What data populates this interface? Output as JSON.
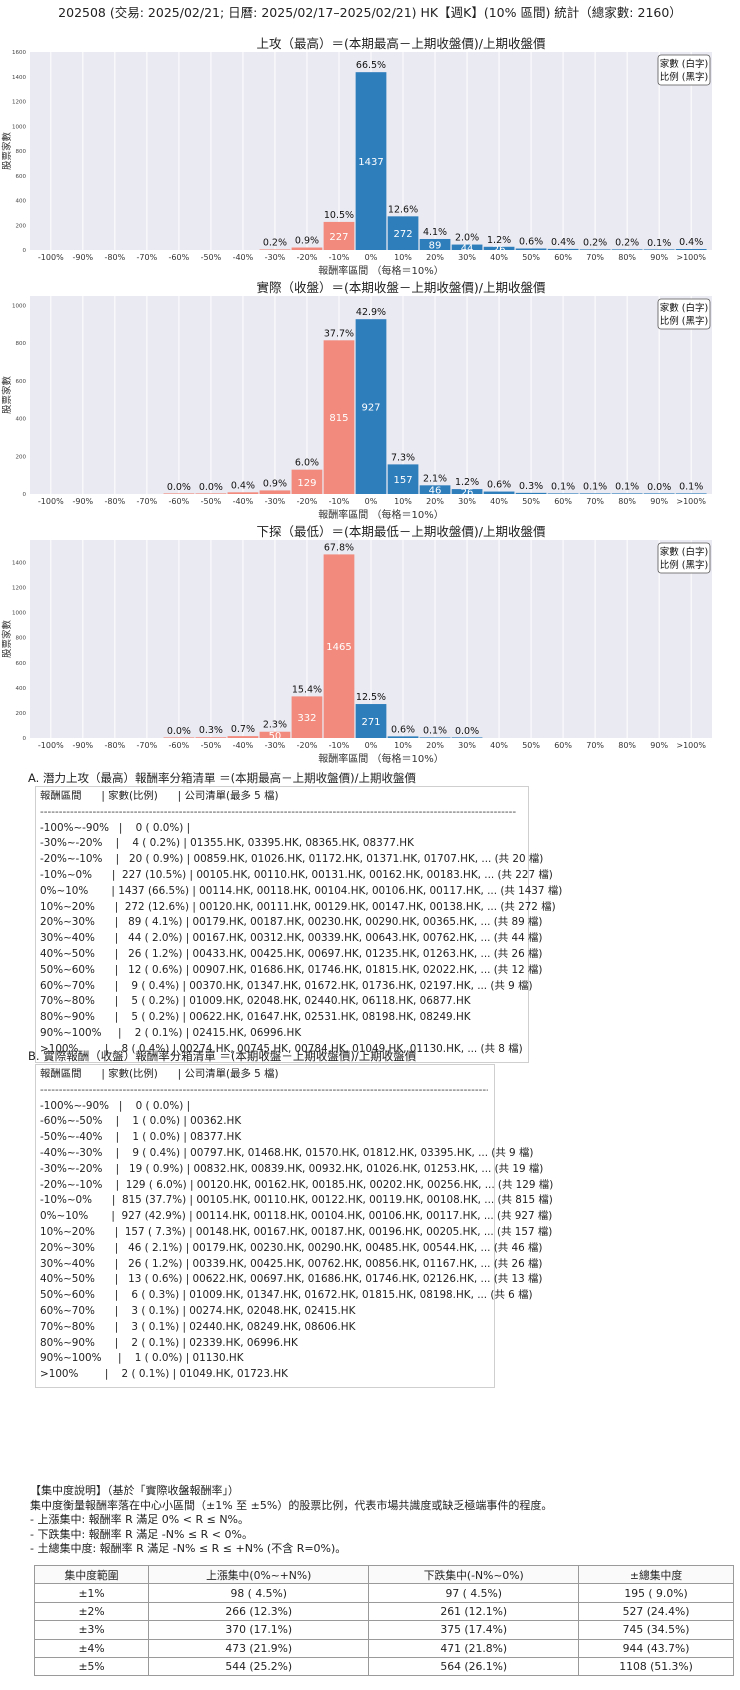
{
  "page_title": "202508 (交易: 2025/02/21; 日曆: 2025/02/17–2025/02/21) HK【週K】(10% 區間) 統計（總家數: 2160）",
  "legend_lines": [
    "家數 (白字)",
    "比例 (黑字)"
  ],
  "chart_data": [
    {
      "type": "bar",
      "title": "上攻（最高）＝(本期最高－上期收盤價)/上期收盤價",
      "xlabel": "報酬率區間 （每格＝10%）",
      "ylabel": "股票家數",
      "categories": [
        "-100%",
        "-90%",
        "-80%",
        "-70%",
        "-60%",
        "-50%",
        "-40%",
        "-30%",
        "-20%",
        "-10%",
        "0%",
        "10%",
        "20%",
        "30%",
        "40%",
        "50%",
        "60%",
        "70%",
        "80%",
        "90%",
        ">100%"
      ],
      "values": [
        0,
        0,
        0,
        0,
        0,
        0,
        0,
        4,
        20,
        227,
        1437,
        272,
        89,
        44,
        26,
        12,
        9,
        5,
        5,
        2,
        8
      ],
      "pct_labels": [
        "",
        "",
        "",
        "",
        "",
        "",
        "",
        "0.2%",
        "0.9%",
        "10.5%",
        "66.5%",
        "12.6%",
        "4.1%",
        "2.0%",
        "1.2%",
        "0.6%",
        "0.4%",
        "0.2%",
        "0.2%",
        "0.1%",
        "0.4%"
      ],
      "count_labels": [
        "",
        "",
        "",
        "",
        "",
        "",
        "",
        "",
        "",
        "227",
        "1437",
        "272",
        "89",
        "44",
        "26",
        "",
        "",
        "",
        "",
        "",
        ""
      ],
      "yticks": [
        "0",
        "200",
        "400",
        "600",
        "800",
        "1000",
        "1200",
        "1400",
        "1600"
      ],
      "ylim": [
        0,
        1600
      ]
    },
    {
      "type": "bar",
      "title": "實際（收盤）＝(本期收盤－上期收盤價)/上期收盤價",
      "xlabel": "報酬率區間 （每格＝10%）",
      "ylabel": "股票家數",
      "categories": [
        "-100%",
        "-90%",
        "-80%",
        "-70%",
        "-60%",
        "-50%",
        "-40%",
        "-30%",
        "-20%",
        "-10%",
        "0%",
        "10%",
        "20%",
        "30%",
        "40%",
        "50%",
        "60%",
        "70%",
        "80%",
        "90%",
        ">100%"
      ],
      "values": [
        0,
        0,
        0,
        0,
        1,
        1,
        9,
        19,
        129,
        815,
        927,
        157,
        46,
        26,
        13,
        6,
        3,
        3,
        2,
        1,
        2
      ],
      "pct_labels": [
        "",
        "",
        "",
        "",
        "0.0%",
        "0.0%",
        "0.4%",
        "0.9%",
        "6.0%",
        "37.7%",
        "42.9%",
        "7.3%",
        "2.1%",
        "1.2%",
        "0.6%",
        "0.3%",
        "0.1%",
        "0.1%",
        "0.1%",
        "0.0%",
        "0.1%"
      ],
      "count_labels": [
        "",
        "",
        "",
        "",
        "",
        "",
        "",
        "",
        "129",
        "815",
        "927",
        "157",
        "46",
        "26",
        "",
        "",
        "",
        "",
        "",
        "",
        ""
      ],
      "yticks": [
        "0",
        "200",
        "400",
        "600",
        "800",
        "1000"
      ],
      "ylim": [
        0,
        1050
      ]
    },
    {
      "type": "bar",
      "title": "下探（最低）＝(本期最低－上期收盤價)/上期收盤價",
      "xlabel": "報酬率區間 （每格＝10%）",
      "ylabel": "股票家數",
      "categories": [
        "-100%",
        "-90%",
        "-80%",
        "-70%",
        "-60%",
        "-50%",
        "-40%",
        "-30%",
        "-20%",
        "-10%",
        "0%",
        "10%",
        "20%",
        "30%",
        "40%",
        "50%",
        "60%",
        "70%",
        "80%",
        "90%",
        ">100%"
      ],
      "values": [
        0,
        0,
        0,
        0,
        1,
        6,
        15,
        50,
        332,
        1465,
        271,
        13,
        2,
        1,
        0,
        0,
        0,
        0,
        0,
        0,
        0
      ],
      "pct_labels": [
        "",
        "",
        "",
        "",
        "0.0%",
        "0.3%",
        "0.7%",
        "2.3%",
        "15.4%",
        "67.8%",
        "12.5%",
        "0.6%",
        "0.1%",
        "0.0%",
        "",
        "",
        "",
        "",
        "",
        "",
        ""
      ],
      "count_labels": [
        "",
        "",
        "",
        "",
        "",
        "",
        "",
        "50",
        "332",
        "1465",
        "271",
        "",
        "",
        "",
        "",
        "",
        "",
        "",
        "",
        "",
        ""
      ],
      "yticks": [
        "0",
        "200",
        "400",
        "600",
        "800",
        "1000",
        "1200",
        "1400"
      ],
      "ylim": [
        0,
        1580
      ]
    }
  ],
  "list_a": {
    "title": "A. 潛力上攻（最高）報酬率分箱清單 ＝(本期最高－上期收盤價)/上期收盤價",
    "header": "報酬區間      | 家數(比例)      | 公司清單(最多 5 檔)",
    "rows": [
      "-100%~-90%   |    0 ( 0.0%) |",
      "-30%~-20%    |    4 ( 0.2%) | 01355.HK, 03395.HK, 08365.HK, 08377.HK",
      "-20%~-10%    |   20 ( 0.9%) | 00859.HK, 01026.HK, 01172.HK, 01371.HK, 01707.HK, ... (共 20 檔)",
      "-10%~0%      |  227 (10.5%) | 00105.HK, 00110.HK, 00131.HK, 00162.HK, 00183.HK, ... (共 227 檔)",
      "0%~10%       | 1437 (66.5%) | 00114.HK, 00118.HK, 00104.HK, 00106.HK, 00117.HK, ... (共 1437 檔)",
      "10%~20%      |  272 (12.6%) | 00120.HK, 00111.HK, 00129.HK, 00147.HK, 00138.HK, ... (共 272 檔)",
      "20%~30%      |   89 ( 4.1%) | 00179.HK, 00187.HK, 00230.HK, 00290.HK, 00365.HK, ... (共 89 檔)",
      "30%~40%      |   44 ( 2.0%) | 00167.HK, 00312.HK, 00339.HK, 00643.HK, 00762.HK, ... (共 44 檔)",
      "40%~50%      |   26 ( 1.2%) | 00433.HK, 00425.HK, 00697.HK, 01235.HK, 01263.HK, ... (共 26 檔)",
      "50%~60%      |   12 ( 0.6%) | 00907.HK, 01686.HK, 01746.HK, 01815.HK, 02022.HK, ... (共 12 檔)",
      "60%~70%      |    9 ( 0.4%) | 00370.HK, 01347.HK, 01672.HK, 01736.HK, 02197.HK, ... (共 9 檔)",
      "70%~80%      |    5 ( 0.2%) | 01009.HK, 02048.HK, 02440.HK, 06118.HK, 06877.HK",
      "80%~90%      |    5 ( 0.2%) | 00622.HK, 01647.HK, 02531.HK, 08198.HK, 08249.HK",
      "90%~100%     |    2 ( 0.1%) | 02415.HK, 06996.HK",
      ">100%        |    8 ( 0.4%) | 00274.HK, 00745.HK, 00784.HK, 01049.HK, 01130.HK, ... (共 8 檔)"
    ]
  },
  "list_b": {
    "title": "B. 實際報酬（收盤）報酬率分箱清單 ＝(本期收盤－上期收盤價)/上期收盤價",
    "header": "報酬區間      | 家數(比例)      | 公司清單(最多 5 檔)",
    "rows": [
      "-100%~-90%   |    0 ( 0.0%) |",
      "-60%~-50%    |    1 ( 0.0%) | 00362.HK",
      "-50%~-40%    |    1 ( 0.0%) | 08377.HK",
      "-40%~-30%    |    9 ( 0.4%) | 00797.HK, 01468.HK, 01570.HK, 01812.HK, 03395.HK, ... (共 9 檔)",
      "-30%~-20%    |   19 ( 0.9%) | 00832.HK, 00839.HK, 00932.HK, 01026.HK, 01253.HK, ... (共 19 檔)",
      "-20%~-10%    |  129 ( 6.0%) | 00120.HK, 00162.HK, 00185.HK, 00202.HK, 00256.HK, ... (共 129 檔)",
      "-10%~0%      |  815 (37.7%) | 00105.HK, 00110.HK, 00122.HK, 00119.HK, 00108.HK, ... (共 815 檔)",
      "0%~10%       |  927 (42.9%) | 00114.HK, 00118.HK, 00104.HK, 00106.HK, 00117.HK, ... (共 927 檔)",
      "10%~20%      |  157 ( 7.3%) | 00148.HK, 00167.HK, 00187.HK, 00196.HK, 00205.HK, ... (共 157 檔)",
      "20%~30%      |   46 ( 2.1%) | 00179.HK, 00230.HK, 00290.HK, 00485.HK, 00544.HK, ... (共 46 檔)",
      "30%~40%      |   26 ( 1.2%) | 00339.HK, 00425.HK, 00762.HK, 00856.HK, 01167.HK, ... (共 26 檔)",
      "40%~50%      |   13 ( 0.6%) | 00622.HK, 00697.HK, 01686.HK, 01746.HK, 02126.HK, ... (共 13 檔)",
      "50%~60%      |    6 ( 0.3%) | 01009.HK, 01347.HK, 01672.HK, 01815.HK, 08198.HK, ... (共 6 檔)",
      "60%~70%      |    3 ( 0.1%) | 00274.HK, 02048.HK, 02415.HK",
      "70%~80%      |    3 ( 0.1%) | 02440.HK, 08249.HK, 08606.HK",
      "80%~90%      |    2 ( 0.1%) | 02339.HK, 06996.HK",
      "90%~100%     |    1 ( 0.0%) | 01130.HK",
      ">100%        |    2 ( 0.1%) | 01049.HK, 01723.HK"
    ]
  },
  "notes": {
    "heading": "【集中度說明】（基於「實際收盤報酬率」）",
    "lines": [
      "集中度衡量報酬率落在中心小區間（±1% 至 ±5%）的股票比例，代表市場共識度或缺乏極端事件的程度。",
      " - 上漲集中: 報酬率 R 滿足 0% < R ≤ N%。",
      " - 下跌集中: 報酬率 R 滿足 -N% ≤ R < 0%。",
      " - 土總集中度: 報酬率 R 滿足 -N% ≤ R ≤ +N% (不含 R=0%)。"
    ]
  },
  "concentration_table": {
    "headers": [
      "集中度範圍",
      "上漲集中(0%~+N%)",
      "下跌集中(-N%~0%)",
      "±總集中度"
    ],
    "rows": [
      [
        "±1%",
        "98 ( 4.5%)",
        "97 ( 4.5%)",
        "195 ( 9.0%)"
      ],
      [
        "±2%",
        "266 (12.3%)",
        "261 (12.1%)",
        "527 (24.4%)"
      ],
      [
        "±3%",
        "370 (17.1%)",
        "375 (17.4%)",
        "745 (34.5%)"
      ],
      [
        "±4%",
        "473 (21.9%)",
        "471 (21.8%)",
        "944 (43.7%)"
      ],
      [
        "±5%",
        "544 (25.2%)",
        "564 (26.1%)",
        "1108 (51.3%)"
      ]
    ]
  },
  "colors": {
    "negative_bar": "#f28b7d",
    "positive_bar": "#2f7ebc",
    "plot_bg": "#eaeaf2",
    "grid": "#ffffff"
  }
}
